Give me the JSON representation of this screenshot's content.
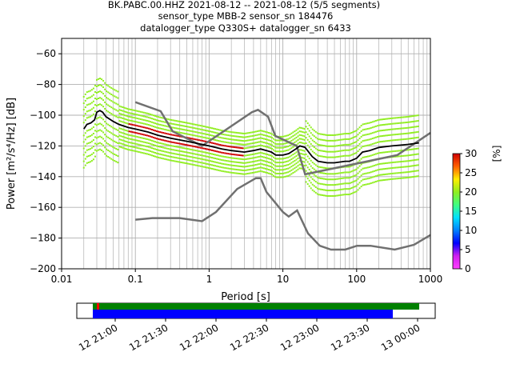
{
  "title_lines": [
    "BK.PABC.00.HHZ   2021-08-12 -- 2021-08-12  (5/5 segments)",
    "sensor_type MBB-2 sensor_sn 184476",
    "datalogger_type Q330S+ datalogger_sn 6433"
  ],
  "chart_data": {
    "type": "line",
    "xlabel": "Period [s]",
    "ylabel": "Power [m²/s⁴/Hz] [dB]",
    "xscale": "log",
    "xlim": [
      0.01,
      1000
    ],
    "ylim": [
      -200,
      -50
    ],
    "x_ticks": [
      {
        "value": 0.01,
        "label": "0.01"
      },
      {
        "value": 0.1,
        "label": "0.1"
      },
      {
        "value": 1,
        "label": "1"
      },
      {
        "value": 10,
        "label": "10"
      },
      {
        "value": 100,
        "label": "100"
      },
      {
        "value": 1000,
        "label": "1000"
      }
    ],
    "y_ticks": [
      -60,
      -80,
      -100,
      -120,
      -140,
      -160,
      -180,
      -200
    ],
    "grid": true,
    "series": [
      {
        "name": "",
        "role": "mode",
        "color": "#000000",
        "x": [
          0.02,
          0.022,
          0.025,
          0.028,
          0.03,
          0.033,
          0.036,
          0.04,
          0.05,
          0.06,
          0.08,
          0.1,
          0.15,
          0.2,
          0.3,
          0.5,
          0.8,
          1,
          1.5,
          2,
          3,
          4,
          5,
          6,
          7,
          8,
          10,
          12,
          15,
          17,
          20,
          25,
          30,
          40,
          50,
          70,
          80,
          100,
          120,
          150,
          200,
          300,
          500,
          700
        ],
        "y": [
          -109,
          -106,
          -105,
          -103,
          -98,
          -97,
          -98,
          -101,
          -104,
          -106,
          -108,
          -109,
          -111,
          -113,
          -115,
          -117,
          -119,
          -120,
          -122,
          -123,
          -124,
          -123,
          -122,
          -123,
          -124,
          -126,
          -126,
          -125,
          -122,
          -120,
          -121,
          -127,
          -130,
          -131,
          -131,
          -130,
          -130,
          -128,
          -124,
          -123,
          -121,
          -120,
          -119,
          -118
        ]
      },
      {
        "name": "",
        "role": "nlnm",
        "color": "#707070",
        "x": [
          0.1,
          0.17,
          0.4,
          0.8,
          1.24,
          2.4,
          4.3,
          5,
          6,
          10,
          12,
          15.6,
          21.9,
          31.6,
          45,
          70,
          101,
          154,
          328,
          600,
          1000
        ],
        "y": [
          -168,
          -167,
          -167,
          -169,
          -163,
          -148,
          -141,
          -141,
          -150,
          -163,
          -166,
          -162,
          -177,
          -185,
          -187.5,
          -187.5,
          -185,
          -185,
          -187.5,
          -184.4,
          -178
        ]
      },
      {
        "name": "",
        "role": "nhnm",
        "color": "#707070",
        "x": [
          0.1,
          0.22,
          0.32,
          0.8,
          3.8,
          4.6,
          6.3,
          7.9,
          15.4,
          20,
          354.8,
          1000
        ],
        "y": [
          -91.5,
          -97.4,
          -110.5,
          -120,
          -98,
          -96.5,
          -101,
          -113.5,
          -120,
          -138.5,
          -126,
          -111.5
        ]
      }
    ],
    "colorbar": {
      "label": "[%]",
      "min": 0,
      "max": 30,
      "ticks": [
        0,
        5,
        10,
        15,
        20,
        25,
        30
      ],
      "colors": [
        "#ff40ff",
        "#d020f0",
        "#0000ff",
        "#0080ff",
        "#00e0ff",
        "#40ff80",
        "#90ee20",
        "#ffee00",
        "#ff6000",
        "#d00000"
      ]
    }
  },
  "timeline": {
    "ticks": [
      "12 21:00",
      "12 21:30",
      "12 22:00",
      "12 22:30",
      "12 23:00",
      "12 23:30",
      "13 00:00"
    ],
    "colors": {
      "data": "#008000",
      "gaps": "#0000ff",
      "marker": "#ff0000"
    }
  }
}
